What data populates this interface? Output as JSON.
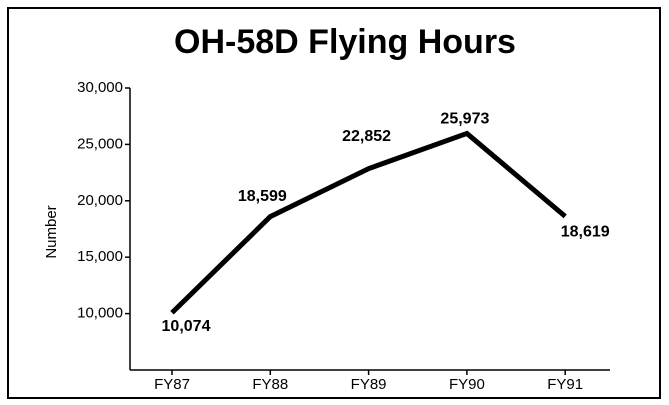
{
  "chart_data": {
    "type": "line",
    "title": "OH-58D Flying Hours",
    "y_label": "Number",
    "categories": [
      "FY87",
      "FY88",
      "FY89",
      "FY90",
      "FY91"
    ],
    "series": [
      {
        "name": "Flying Hours",
        "color": "#000000",
        "values": [
          10074,
          18599,
          22852,
          25973,
          18619
        ],
        "value_labels": [
          "10,074",
          "18,599",
          "22,852",
          "25,973",
          "18,619"
        ]
      }
    ],
    "ylim": [
      5000,
      30000
    ],
    "yticks": [
      {
        "value": 10000,
        "label": "10,000"
      },
      {
        "value": 15000,
        "label": "15,000"
      },
      {
        "value": 20000,
        "label": "20,000"
      },
      {
        "value": 25000,
        "label": "25,000"
      },
      {
        "value": 30000,
        "label": "30,000"
      }
    ],
    "grid": false,
    "legend": false
  }
}
